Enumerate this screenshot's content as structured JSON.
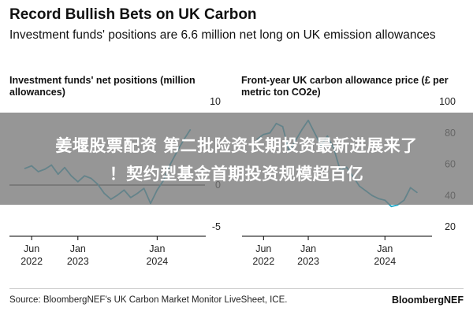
{
  "header": {
    "title": "Record Bullish Bets on UK Carbon",
    "subtitle": "Investment funds' positions are 6.6 million net long on UK emission allowances"
  },
  "banner": {
    "text_line1": "姜堰股票配资 第二批险资长期投资最新进展来了",
    "text_line2": "！契约型基金首期投资规模超百亿"
  },
  "footer": {
    "source": "Source: BloombergNEF's UK Carbon Market Monitor LiveSheet, ICE.",
    "brand": "BloombergNEF"
  },
  "colors": {
    "line": "#1fa9c9",
    "zero_line": "#000000",
    "banner": "#7a7a7a"
  },
  "chart_data": [
    {
      "type": "line",
      "title": "Investment funds' net positions (million allowances)",
      "ylim": [
        -5,
        10
      ],
      "y_ticks": [
        "10",
        "5",
        "0",
        "-5"
      ],
      "x_ticks": [
        {
          "line1": "Jun",
          "line2": "2022",
          "date": "2022-06"
        },
        {
          "line1": "Jan",
          "line2": "2023",
          "date": "2023-01"
        },
        {
          "line1": "Jan",
          "line2": "2024",
          "date": "2024-01"
        }
      ],
      "series": [
        {
          "x": [
            "2022-05",
            "2022-06",
            "2022-07",
            "2022-08",
            "2022-09",
            "2022-10",
            "2022-11",
            "2022-12",
            "2023-01",
            "2023-02",
            "2023-03",
            "2023-04",
            "2023-05",
            "2023-06",
            "2023-07",
            "2023-08",
            "2023-09",
            "2023-10",
            "2023-11",
            "2023-12",
            "2024-01",
            "2024-02",
            "2024-03",
            "2024-04",
            "2024-05",
            "2024-06"
          ],
          "values": [
            2.0,
            2.3,
            1.6,
            1.9,
            2.4,
            1.3,
            2.1,
            1.1,
            0.4,
            1.1,
            0.8,
            0.1,
            -1.0,
            -1.7,
            -1.2,
            -0.6,
            -1.5,
            -1.0,
            -0.4,
            -2.2,
            -0.6,
            0.6,
            2.5,
            4.0,
            5.4,
            6.6
          ]
        }
      ]
    },
    {
      "type": "line",
      "title": "Front-year UK carbon allowance price (£ per metric ton CO2e)",
      "ylim": [
        20,
        100
      ],
      "y_ticks": [
        "100",
        "80",
        "60",
        "40",
        "20"
      ],
      "x_ticks": [
        {
          "line1": "Jun",
          "line2": "2022",
          "date": "2022-06"
        },
        {
          "line1": "Jan",
          "line2": "2023",
          "date": "2023-01"
        },
        {
          "line1": "Jan",
          "line2": "2024",
          "date": "2024-01"
        }
      ],
      "series": [
        {
          "x": [
            "2022-05",
            "2022-06",
            "2022-07",
            "2022-08",
            "2022-09",
            "2022-10",
            "2022-11",
            "2022-12",
            "2023-01",
            "2023-02",
            "2023-03",
            "2023-04",
            "2023-05",
            "2023-06",
            "2023-07",
            "2023-08",
            "2023-09",
            "2023-10",
            "2023-11",
            "2023-12",
            "2024-01",
            "2024-02",
            "2024-03",
            "2024-04",
            "2024-05",
            "2024-06"
          ],
          "values": [
            76,
            79,
            80,
            86,
            84,
            68,
            75,
            82,
            88,
            80,
            72,
            78,
            70,
            56,
            58,
            52,
            46,
            43,
            40,
            38,
            37,
            33,
            34,
            37,
            45,
            42
          ]
        }
      ]
    }
  ]
}
